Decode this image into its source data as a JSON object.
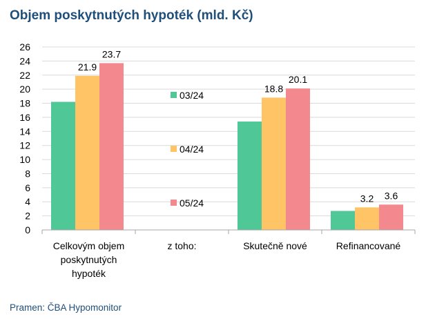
{
  "title": "Objem poskytnutých hypoték (mld. Kč)",
  "source": "Pramen: ČBA Hypomonitor",
  "chart_data": {
    "type": "bar",
    "categories": [
      [
        "Celkovým objem",
        "poskytnutých",
        "hypoték"
      ],
      [
        "z toho:"
      ],
      [
        "Skutečně nové"
      ],
      [
        "Refinancované"
      ]
    ],
    "series": [
      {
        "name": "03/24",
        "color": "#4fc796",
        "values": [
          18.2,
          null,
          15.4,
          2.7
        ]
      },
      {
        "name": "04/24",
        "color": "#ffc465",
        "values": [
          21.9,
          null,
          18.8,
          3.2
        ]
      },
      {
        "name": "05/24",
        "color": "#f4888f",
        "values": [
          23.7,
          null,
          20.1,
          3.6
        ]
      }
    ],
    "data_labels": [
      {
        "series": 1,
        "category": 0,
        "text": "21.9"
      },
      {
        "series": 2,
        "category": 0,
        "text": "23.7"
      },
      {
        "series": 1,
        "category": 2,
        "text": "18.8"
      },
      {
        "series": 2,
        "category": 2,
        "text": "20.1"
      },
      {
        "series": 1,
        "category": 3,
        "text": "3.2"
      },
      {
        "series": 2,
        "category": 3,
        "text": "3.6"
      }
    ],
    "yticks": [
      0,
      2,
      4,
      6,
      8,
      10,
      12,
      14,
      16,
      18,
      20,
      22,
      24,
      26
    ],
    "ylim": [
      0,
      26
    ],
    "grid": true,
    "legend": "inside-center-left"
  }
}
